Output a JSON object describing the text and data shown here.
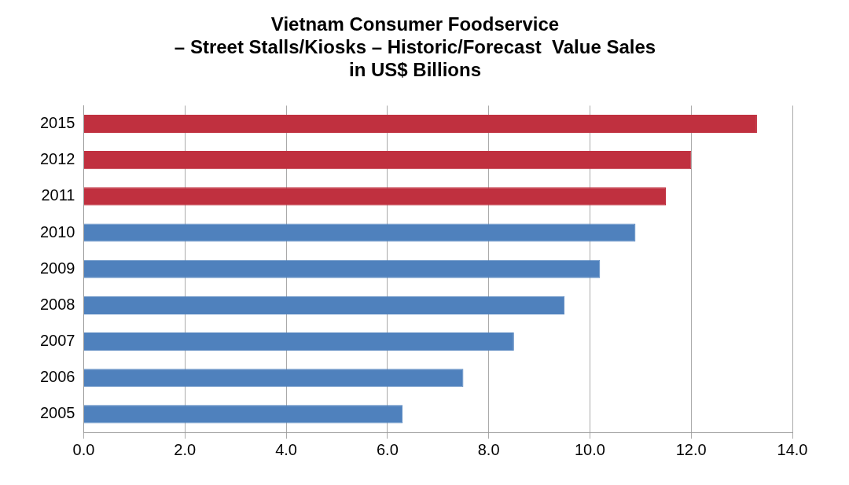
{
  "chart_data": {
    "type": "bar",
    "orientation": "horizontal",
    "title": "Vietnam Consumer Foodservice\n– Street Stalls/Kiosks – Historic/Forecast  Value Sales\nin US$ Billions",
    "categories": [
      "2015",
      "2012",
      "2011",
      "2010",
      "2009",
      "2008",
      "2007",
      "2006",
      "2005"
    ],
    "values": [
      13.3,
      12.0,
      11.5,
      10.9,
      10.2,
      9.5,
      8.5,
      7.5,
      6.3
    ],
    "colors": [
      "#c0303f",
      "#c0303f",
      "#c0303f",
      "#4f81bd",
      "#4f81bd",
      "#4f81bd",
      "#4f81bd",
      "#4f81bd",
      "#4f81bd"
    ],
    "xlim": [
      0,
      14
    ],
    "xticks": [
      {
        "value": 0,
        "label": "0.0"
      },
      {
        "value": 2,
        "label": "2.0"
      },
      {
        "value": 4,
        "label": "4.0"
      },
      {
        "value": 6,
        "label": "6.0"
      },
      {
        "value": 8,
        "label": "8.0"
      },
      {
        "value": 10,
        "label": "10.0"
      },
      {
        "value": 12,
        "label": "12.0"
      },
      {
        "value": 14,
        "label": "14.0"
      }
    ],
    "grid": "x",
    "legend": false
  }
}
